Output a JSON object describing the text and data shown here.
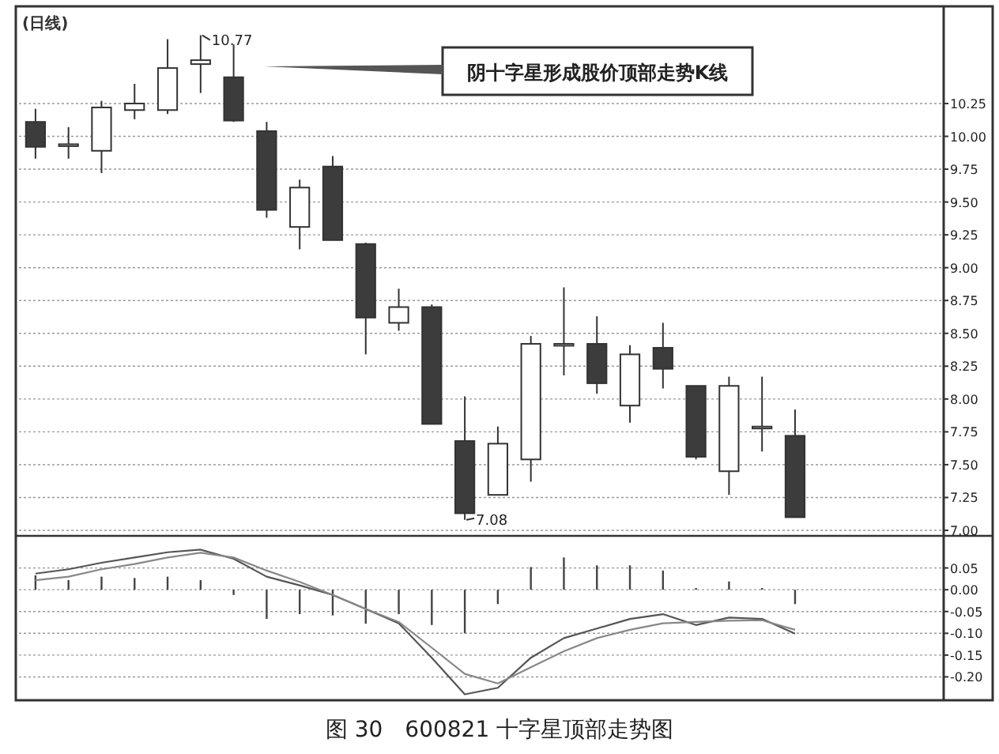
{
  "chart_data": [
    {
      "type": "candlestick",
      "title": "(日线)",
      "categories": [
        null,
        null,
        null,
        null,
        null,
        null,
        null,
        null,
        null,
        null,
        null,
        null,
        null,
        null,
        null,
        null,
        null,
        null,
        null,
        null,
        null,
        null,
        null,
        null,
        null,
        null,
        null,
        null
      ],
      "ohlc": [
        [
          10.11,
          10.21,
          9.83,
          9.92
        ],
        [
          9.93,
          10.07,
          9.83,
          9.94
        ],
        [
          9.89,
          10.27,
          9.72,
          10.22
        ],
        [
          10.2,
          10.4,
          10.13,
          10.25
        ],
        [
          10.2,
          10.74,
          10.17,
          10.52
        ],
        [
          10.55,
          10.77,
          10.33,
          10.58
        ],
        [
          10.45,
          10.7,
          10.11,
          10.12
        ],
        [
          10.04,
          10.11,
          9.38,
          9.44
        ],
        [
          9.31,
          9.67,
          9.14,
          9.61
        ],
        [
          9.77,
          9.85,
          9.21,
          9.21
        ],
        [
          9.18,
          9.19,
          8.34,
          8.62
        ],
        [
          8.58,
          8.84,
          8.52,
          8.7
        ],
        [
          8.7,
          8.72,
          7.81,
          7.81
        ],
        [
          7.68,
          8.02,
          7.08,
          7.13
        ],
        [
          7.27,
          7.79,
          7.27,
          7.66
        ],
        [
          7.54,
          8.48,
          7.37,
          8.42
        ],
        [
          8.41,
          8.85,
          8.18,
          8.42
        ],
        [
          8.42,
          8.63,
          8.04,
          8.12
        ],
        [
          7.95,
          8.41,
          7.82,
          8.34
        ],
        [
          8.39,
          8.58,
          8.08,
          8.23
        ],
        [
          8.1,
          8.1,
          7.54,
          7.56
        ],
        [
          7.45,
          8.17,
          7.27,
          8.1
        ],
        [
          7.78,
          8.17,
          7.6,
          7.79
        ],
        [
          7.72,
          7.92,
          7.1,
          7.1
        ],
        null,
        null,
        null,
        null
      ],
      "ylim": [
        6.97,
        10.99
      ],
      "yticks": [
        {
          "value": 7,
          "label": "7.00"
        },
        {
          "value": 7.25,
          "label": "7.25"
        },
        {
          "value": 7.5,
          "label": "7.50"
        },
        {
          "value": 7.75,
          "label": "7.75"
        },
        {
          "value": 8,
          "label": "8.00"
        },
        {
          "value": 8.25,
          "label": "8.25"
        },
        {
          "value": 8.5,
          "label": "8.50"
        },
        {
          "value": 8.75,
          "label": "8.75"
        },
        {
          "value": 9,
          "label": "9.00"
        },
        {
          "value": 9.25,
          "label": "9.25"
        },
        {
          "value": 9.5,
          "label": "9.50"
        },
        {
          "value": 9.75,
          "label": "9.75"
        },
        {
          "value": 10,
          "label": "10.00"
        },
        {
          "value": 10.25,
          "label": "10.25"
        }
      ],
      "grid": "y",
      "tick_labels": "y",
      "annotations": [
        "阴十字星形成股价顶部走势K线",
        "10.77",
        "7.08",
        "图 30　600821 十字星顶部走势图"
      ]
    },
    {
      "type": "bar",
      "categories": [
        null,
        null,
        null,
        null,
        null,
        null,
        null,
        null,
        null,
        null,
        null,
        null,
        null,
        null,
        null,
        null,
        null,
        null,
        null,
        null,
        null,
        null,
        null,
        null,
        null,
        null,
        null,
        null
      ],
      "series": [
        {
          "type": "bar",
          "color": "#444444",
          "values": [
            0.033,
            0.022,
            0.03,
            0.027,
            0.03,
            0.022,
            -0.012,
            -0.067,
            -0.056,
            -0.059,
            -0.078,
            -0.056,
            -0.081,
            -0.1,
            -0.033,
            0.052,
            0.074,
            0.056,
            0.056,
            0.044,
            0.004,
            0.019,
            0.004,
            -0.033,
            null,
            null,
            null,
            null
          ]
        },
        {
          "type": "line",
          "color": "#555555",
          "values": [
            0.037,
            0.047,
            0.062,
            0.074,
            0.086,
            0.092,
            0.071,
            0.03,
            0.01,
            -0.012,
            -0.044,
            -0.077,
            -0.156,
            -0.24,
            -0.225,
            -0.156,
            -0.111,
            -0.089,
            -0.067,
            -0.056,
            -0.081,
            -0.064,
            -0.067,
            -0.101,
            null,
            null,
            null,
            null
          ]
        },
        {
          "type": "line",
          "color": "#888888",
          "values": [
            0.022,
            0.03,
            0.047,
            0.059,
            0.074,
            0.085,
            0.074,
            0.044,
            0.018,
            -0.012,
            -0.044,
            -0.074,
            -0.133,
            -0.193,
            -0.215,
            -0.178,
            -0.141,
            -0.111,
            -0.092,
            -0.077,
            -0.074,
            -0.071,
            -0.07,
            -0.092,
            null,
            null,
            null,
            null
          ]
        }
      ],
      "ylim": [
        -0.25,
        0.12
      ],
      "yticks": [
        {
          "value": 0.05,
          "label": "0.05"
        },
        {
          "value": 0,
          "label": "0.00"
        },
        {
          "value": -0.05,
          "label": "-0.05"
        },
        {
          "value": -0.1,
          "label": "-0.10"
        },
        {
          "value": -0.15,
          "label": "-0.15"
        },
        {
          "value": -0.2,
          "label": "-0.20"
        }
      ],
      "grid": "y",
      "tick_labels": "y"
    }
  ]
}
